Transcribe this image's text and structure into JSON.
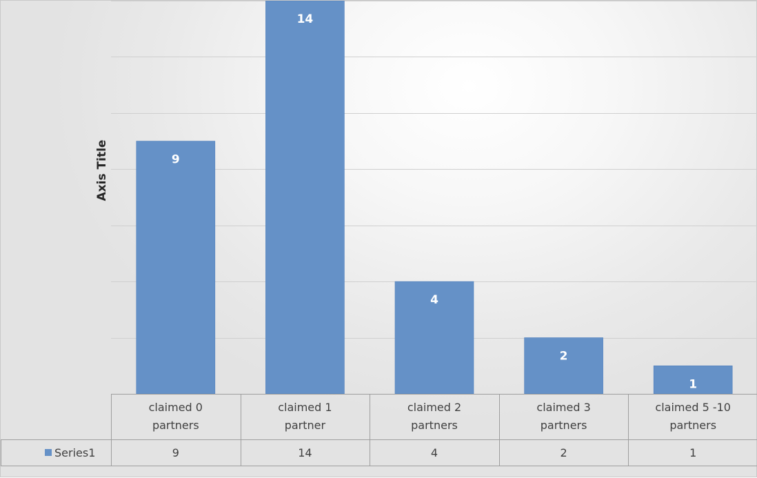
{
  "chart_data": {
    "type": "bar",
    "title": "",
    "ylabel": "Axis Title",
    "xlabel": "",
    "categories": [
      [
        "claimed 0",
        "partners"
      ],
      [
        "claimed 1",
        "partner"
      ],
      [
        "claimed 2",
        "partners"
      ],
      [
        "claimed 3",
        "partners"
      ],
      [
        "claimed 5 -10",
        "partners"
      ]
    ],
    "series": [
      {
        "name": "Series1",
        "values": [
          9,
          14,
          4,
          2,
          1
        ],
        "color": "#6591c7"
      }
    ],
    "ylim": [
      0,
      14
    ],
    "grid": true,
    "data_labels": true,
    "data_table": true,
    "legend": "data-table"
  }
}
